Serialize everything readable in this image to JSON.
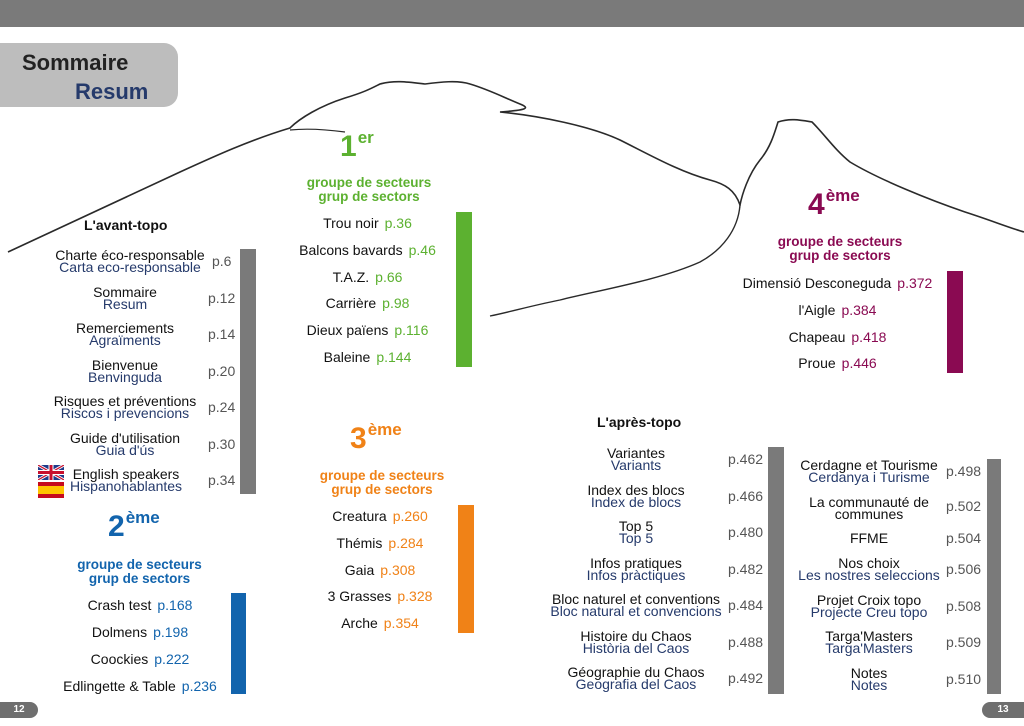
{
  "header": {
    "title_fr": "Sommaire",
    "title_ca": "Resum"
  },
  "colors": {
    "group1": "#5cb130",
    "group2": "#1264ad",
    "group3": "#f08217",
    "group4": "#8a0a52",
    "grey": "#7a7a7a",
    "catalan": "#253a6b"
  },
  "avant_topo": {
    "heading": "L'avant-topo",
    "items": [
      {
        "fr": "Charte éco-responsable",
        "ca": "Carta eco-responsable",
        "page": "p.6"
      },
      {
        "fr": "Sommaire",
        "ca": "Resum",
        "page": "p.12"
      },
      {
        "fr": "Remerciements",
        "ca": "Agraïments",
        "page": "p.14"
      },
      {
        "fr": "Bienvenue",
        "ca": "Benvinguda",
        "page": "p.20"
      },
      {
        "fr": "Risques et préventions",
        "ca": "Riscos i prevencions",
        "page": "p.24"
      },
      {
        "fr": "Guide d'utilisation",
        "ca": "Guia d'ús",
        "page": "p.30"
      },
      {
        "fr": "English speakers",
        "ca": "Hispanohablantes",
        "page": "p.34"
      }
    ]
  },
  "groups": [
    {
      "num": "1",
      "suffix": "er",
      "fr": "groupe de secteurs",
      "ca": "grup de sectors",
      "sectors": [
        {
          "name": "Trou noir",
          "page": "p.36"
        },
        {
          "name": "Balcons bavards",
          "page": "p.46"
        },
        {
          "name": "T.A.Z.",
          "page": "p.66"
        },
        {
          "name": "Carrière",
          "page": "p.98"
        },
        {
          "name": "Dieux païens",
          "page": "p.116"
        },
        {
          "name": "Baleine",
          "page": "p.144"
        }
      ]
    },
    {
      "num": "2",
      "suffix": "ème",
      "fr": "groupe de secteurs",
      "ca": "grup de sectors",
      "sectors": [
        {
          "name": "Crash test",
          "page": "p.168"
        },
        {
          "name": "Dolmens",
          "page": "p.198"
        },
        {
          "name": "Coockies",
          "page": "p.222"
        },
        {
          "name": "Edlingette & Table",
          "page": "p.236"
        }
      ]
    },
    {
      "num": "3",
      "suffix": "ème",
      "fr": "groupe de secteurs",
      "ca": "grup de sectors",
      "sectors": [
        {
          "name": "Creatura",
          "page": "p.260"
        },
        {
          "name": "Thémis",
          "page": "p.284"
        },
        {
          "name": "Gaia",
          "page": "p.308"
        },
        {
          "name": "3 Grasses",
          "page": "p.328"
        },
        {
          "name": "Arche",
          "page": "p.354"
        }
      ]
    },
    {
      "num": "4",
      "suffix": "ème",
      "fr": "groupe de secteurs",
      "ca": "grup de sectors",
      "sectors": [
        {
          "name": "Dimensió Desconeguda",
          "page": "p.372"
        },
        {
          "name": "l'Aigle",
          "page": "p.384"
        },
        {
          "name": "Chapeau",
          "page": "p.418"
        },
        {
          "name": "Proue",
          "page": "p.446"
        }
      ]
    }
  ],
  "apres_topo": {
    "heading": "L'après-topo",
    "col1": [
      {
        "fr": "Variantes",
        "ca": "Variants",
        "page": "p.462"
      },
      {
        "fr": "Index des blocs",
        "ca": "Index de blocs",
        "page": "p.466"
      },
      {
        "fr": "Top 5",
        "ca": "Top 5",
        "page": "p.480"
      },
      {
        "fr": "Infos pratiques",
        "ca": "Infos pràctiques",
        "page": "p.482"
      },
      {
        "fr": "Bloc naturel et conventions",
        "ca": "Bloc natural et convencions",
        "page": "p.484"
      },
      {
        "fr": "Histoire du Chaos",
        "ca": "Història del Caos",
        "page": "p.488"
      },
      {
        "fr": "Géographie du Chaos",
        "ca": "Geografia del Caos",
        "page": "p.492"
      }
    ],
    "col2": [
      {
        "fr": "Cerdagne et Tourisme",
        "ca": "Cerdanya i Turisme",
        "page": "p.498"
      },
      {
        "fr": "La communauté de",
        "ca": "communes",
        "page": "p.502"
      },
      {
        "fr": "FFME",
        "ca": "",
        "page": "p.504"
      },
      {
        "fr": "Nos choix",
        "ca": "Les nostres seleccions",
        "page": "p.506"
      },
      {
        "fr": "Projet Croix topo",
        "ca": "Projecte Creu topo",
        "page": "p.508"
      },
      {
        "fr": "Targa'Masters",
        "ca": "Targa'Masters",
        "page": "p.509"
      },
      {
        "fr": "Notes",
        "ca": "Notes",
        "page": "p.510"
      }
    ]
  },
  "footer": {
    "left_page": "12",
    "right_page": "13"
  }
}
